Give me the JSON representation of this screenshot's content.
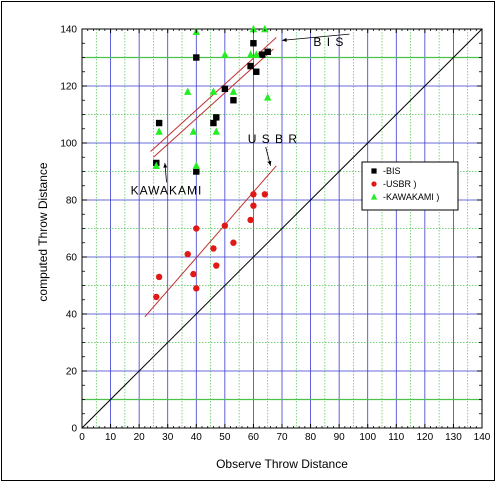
{
  "chart_data": {
    "type": "scatter",
    "xlabel": "Observe Throw Distance",
    "ylabel": "computed Throw Distance",
    "xlim": [
      0,
      140
    ],
    "ylim": [
      0,
      140
    ],
    "x_ticks": [
      "0",
      "10",
      "20",
      "30",
      "40",
      "50",
      "60",
      "70",
      "80",
      "90",
      "100",
      "110",
      "120",
      "130",
      "140"
    ],
    "y_ticks": [
      "0",
      "20",
      "40",
      "60",
      "80",
      "100",
      "120",
      "140"
    ],
    "grid": true,
    "legend_position": "right",
    "colors": {
      "grid_major": "#3a3ad0",
      "grid_minor": "#4cc14c",
      "bis": "#000000",
      "usbr": "#e01818",
      "kawakami": "#22ee22",
      "fit": "#c03030",
      "identity": "#000000"
    },
    "series": [
      {
        "name": "-BIS",
        "marker": "square",
        "points": [
          [
            26,
            93
          ],
          [
            27,
            107
          ],
          [
            40,
            130
          ],
          [
            40,
            90
          ],
          [
            46,
            107
          ],
          [
            47,
            109
          ],
          [
            50,
            119
          ],
          [
            53,
            115
          ],
          [
            59,
            127
          ],
          [
            60,
            135
          ],
          [
            61,
            125
          ],
          [
            63,
            131
          ],
          [
            65,
            132
          ]
        ]
      },
      {
        "name": "-USBR )",
        "marker": "circle",
        "points": [
          [
            26,
            46
          ],
          [
            27,
            53
          ],
          [
            37,
            61
          ],
          [
            39,
            54
          ],
          [
            40,
            49
          ],
          [
            40,
            70
          ],
          [
            46,
            63
          ],
          [
            47,
            57
          ],
          [
            50,
            71
          ],
          [
            53,
            65
          ],
          [
            59,
            73
          ],
          [
            60,
            78
          ],
          [
            60,
            82
          ],
          [
            64,
            82
          ]
        ]
      },
      {
        "name": "-KAWAKAMI )",
        "marker": "triangle",
        "points": [
          [
            26,
            92
          ],
          [
            27,
            104
          ],
          [
            37,
            118
          ],
          [
            39,
            104
          ],
          [
            40,
            92
          ],
          [
            40,
            139
          ],
          [
            46,
            118
          ],
          [
            47,
            104
          ],
          [
            50,
            131
          ],
          [
            53,
            118
          ],
          [
            59,
            131
          ],
          [
            60,
            140
          ],
          [
            61,
            131
          ],
          [
            64,
            140
          ],
          [
            65,
            116
          ]
        ]
      }
    ],
    "fit_lines": [
      {
        "x1": 24,
        "y1": 97,
        "x2": 68,
        "y2": 137
      },
      {
        "x1": 25,
        "y1": 95,
        "x2": 67,
        "y2": 133
      },
      {
        "x1": 22,
        "y1": 39,
        "x2": 68,
        "y2": 92
      }
    ],
    "identity_line": {
      "x1": 0,
      "y1": 0,
      "x2": 140,
      "y2": 140
    },
    "annotations": [
      {
        "text": "B I S",
        "x": 81,
        "y": 134,
        "arrow_to": [
          70,
          136
        ]
      },
      {
        "text": "U S B R",
        "x": 58,
        "y": 100,
        "arrow_to": [
          66,
          92
        ]
      },
      {
        "text": "KAWAKAMI",
        "x": 17,
        "y": 82,
        "arrow_to": [
          29,
          93
        ]
      }
    ]
  }
}
